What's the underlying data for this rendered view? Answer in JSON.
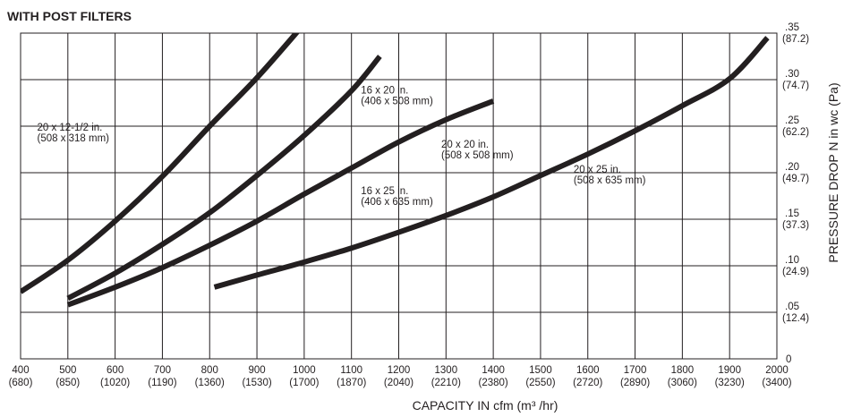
{
  "chart_data": {
    "type": "line",
    "title": "WITH POST FILTERS",
    "xlabel": "CAPACITY IN cfm (m³ /hr)",
    "ylabel": "PRESSURE DROP  N in  wc (Pa)",
    "xlim": [
      400,
      2000
    ],
    "ylim": [
      0,
      0.35
    ],
    "x_ticks": [
      {
        "value": 400,
        "line1": "400",
        "line2": "(680)"
      },
      {
        "value": 500,
        "line1": "500",
        "line2": "(850)"
      },
      {
        "value": 600,
        "line1": "600",
        "line2": "(1020)"
      },
      {
        "value": 700,
        "line1": "700",
        "line2": "(1190)"
      },
      {
        "value": 800,
        "line1": "800",
        "line2": "(1360)"
      },
      {
        "value": 900,
        "line1": "900",
        "line2": "(1530)"
      },
      {
        "value": 1000,
        "line1": "1000",
        "line2": "(1700)"
      },
      {
        "value": 1100,
        "line1": "1100",
        "line2": "(1870)"
      },
      {
        "value": 1200,
        "line1": "1200",
        "line2": "(2040)"
      },
      {
        "value": 1300,
        "line1": "1300",
        "line2": "(2210)"
      },
      {
        "value": 1400,
        "line1": "1400",
        "line2": "(2380)"
      },
      {
        "value": 1500,
        "line1": "1500",
        "line2": "(2550)"
      },
      {
        "value": 1600,
        "line1": "1600",
        "line2": "(2720)"
      },
      {
        "value": 1700,
        "line1": "1700",
        "line2": "(2890)"
      },
      {
        "value": 1800,
        "line1": "1800",
        "line2": "(3060)"
      },
      {
        "value": 1900,
        "line1": "1900",
        "line2": "(3230)"
      },
      {
        "value": 2000,
        "line1": "2000",
        "line2": "(3400)"
      }
    ],
    "y_ticks": [
      {
        "value": 0,
        "line1": "0",
        "line2": ""
      },
      {
        "value": 0.05,
        "line1": ".05",
        "line2": "(12.4)"
      },
      {
        "value": 0.1,
        "line1": ".10",
        "line2": "(24.9)"
      },
      {
        "value": 0.15,
        "line1": ".15",
        "line2": "(37.3)"
      },
      {
        "value": 0.2,
        "line1": ".20",
        "line2": "(49.7)"
      },
      {
        "value": 0.25,
        "line1": ".25",
        "line2": "(62.2)"
      },
      {
        "value": 0.3,
        "line1": ".30",
        "line2": "(74.7)"
      },
      {
        "value": 0.35,
        "line1": ".35",
        "line2": "(87.2)"
      }
    ],
    "series": [
      {
        "label_line1": "20 x 12-1/2 in.",
        "label_line2": "(508 x 318 mm)",
        "label_at": [
          435,
          0.245
        ],
        "points": [
          [
            400,
            0.072
          ],
          [
            500,
            0.106
          ],
          [
            600,
            0.148
          ],
          [
            700,
            0.196
          ],
          [
            800,
            0.25
          ],
          [
            900,
            0.302
          ],
          [
            1000,
            0.36
          ]
        ]
      },
      {
        "label_line1": "16 x 20 in.",
        "label_line2": "(406 x 508 mm)",
        "label_at": [
          1120,
          0.285
        ],
        "points": [
          [
            500,
            0.065
          ],
          [
            600,
            0.092
          ],
          [
            700,
            0.123
          ],
          [
            800,
            0.157
          ],
          [
            900,
            0.197
          ],
          [
            1000,
            0.24
          ],
          [
            1100,
            0.288
          ],
          [
            1160,
            0.325
          ]
        ]
      },
      {
        "label_line1": "16 x 25 in.",
        "label_line2": "(406 x 635 mm)",
        "label_at": [
          1120,
          0.177
        ],
        "points": [
          [
            500,
            0.058
          ],
          [
            600,
            0.077
          ],
          [
            700,
            0.098
          ],
          [
            800,
            0.122
          ],
          [
            900,
            0.148
          ],
          [
            1000,
            0.177
          ],
          [
            1100,
            0.205
          ],
          [
            1200,
            0.233
          ],
          [
            1300,
            0.257
          ],
          [
            1400,
            0.277
          ]
        ]
      },
      {
        "label_line1": "20 x 20 in.",
        "label_line2": "(508 x 508 mm)",
        "label_at": [
          1290,
          0.227
        ],
        "points": []
      },
      {
        "label_line1": "20 x 25 in.",
        "label_line2": "(508 x 635 mm)",
        "label_at": [
          1570,
          0.2
        ],
        "points": [
          [
            810,
            0.077
          ],
          [
            900,
            0.09
          ],
          [
            1000,
            0.104
          ],
          [
            1100,
            0.119
          ],
          [
            1200,
            0.136
          ],
          [
            1300,
            0.154
          ],
          [
            1400,
            0.174
          ],
          [
            1500,
            0.197
          ],
          [
            1600,
            0.22
          ],
          [
            1700,
            0.245
          ],
          [
            1800,
            0.272
          ],
          [
            1900,
            0.301
          ],
          [
            1980,
            0.345
          ]
        ]
      }
    ],
    "grid": true
  }
}
